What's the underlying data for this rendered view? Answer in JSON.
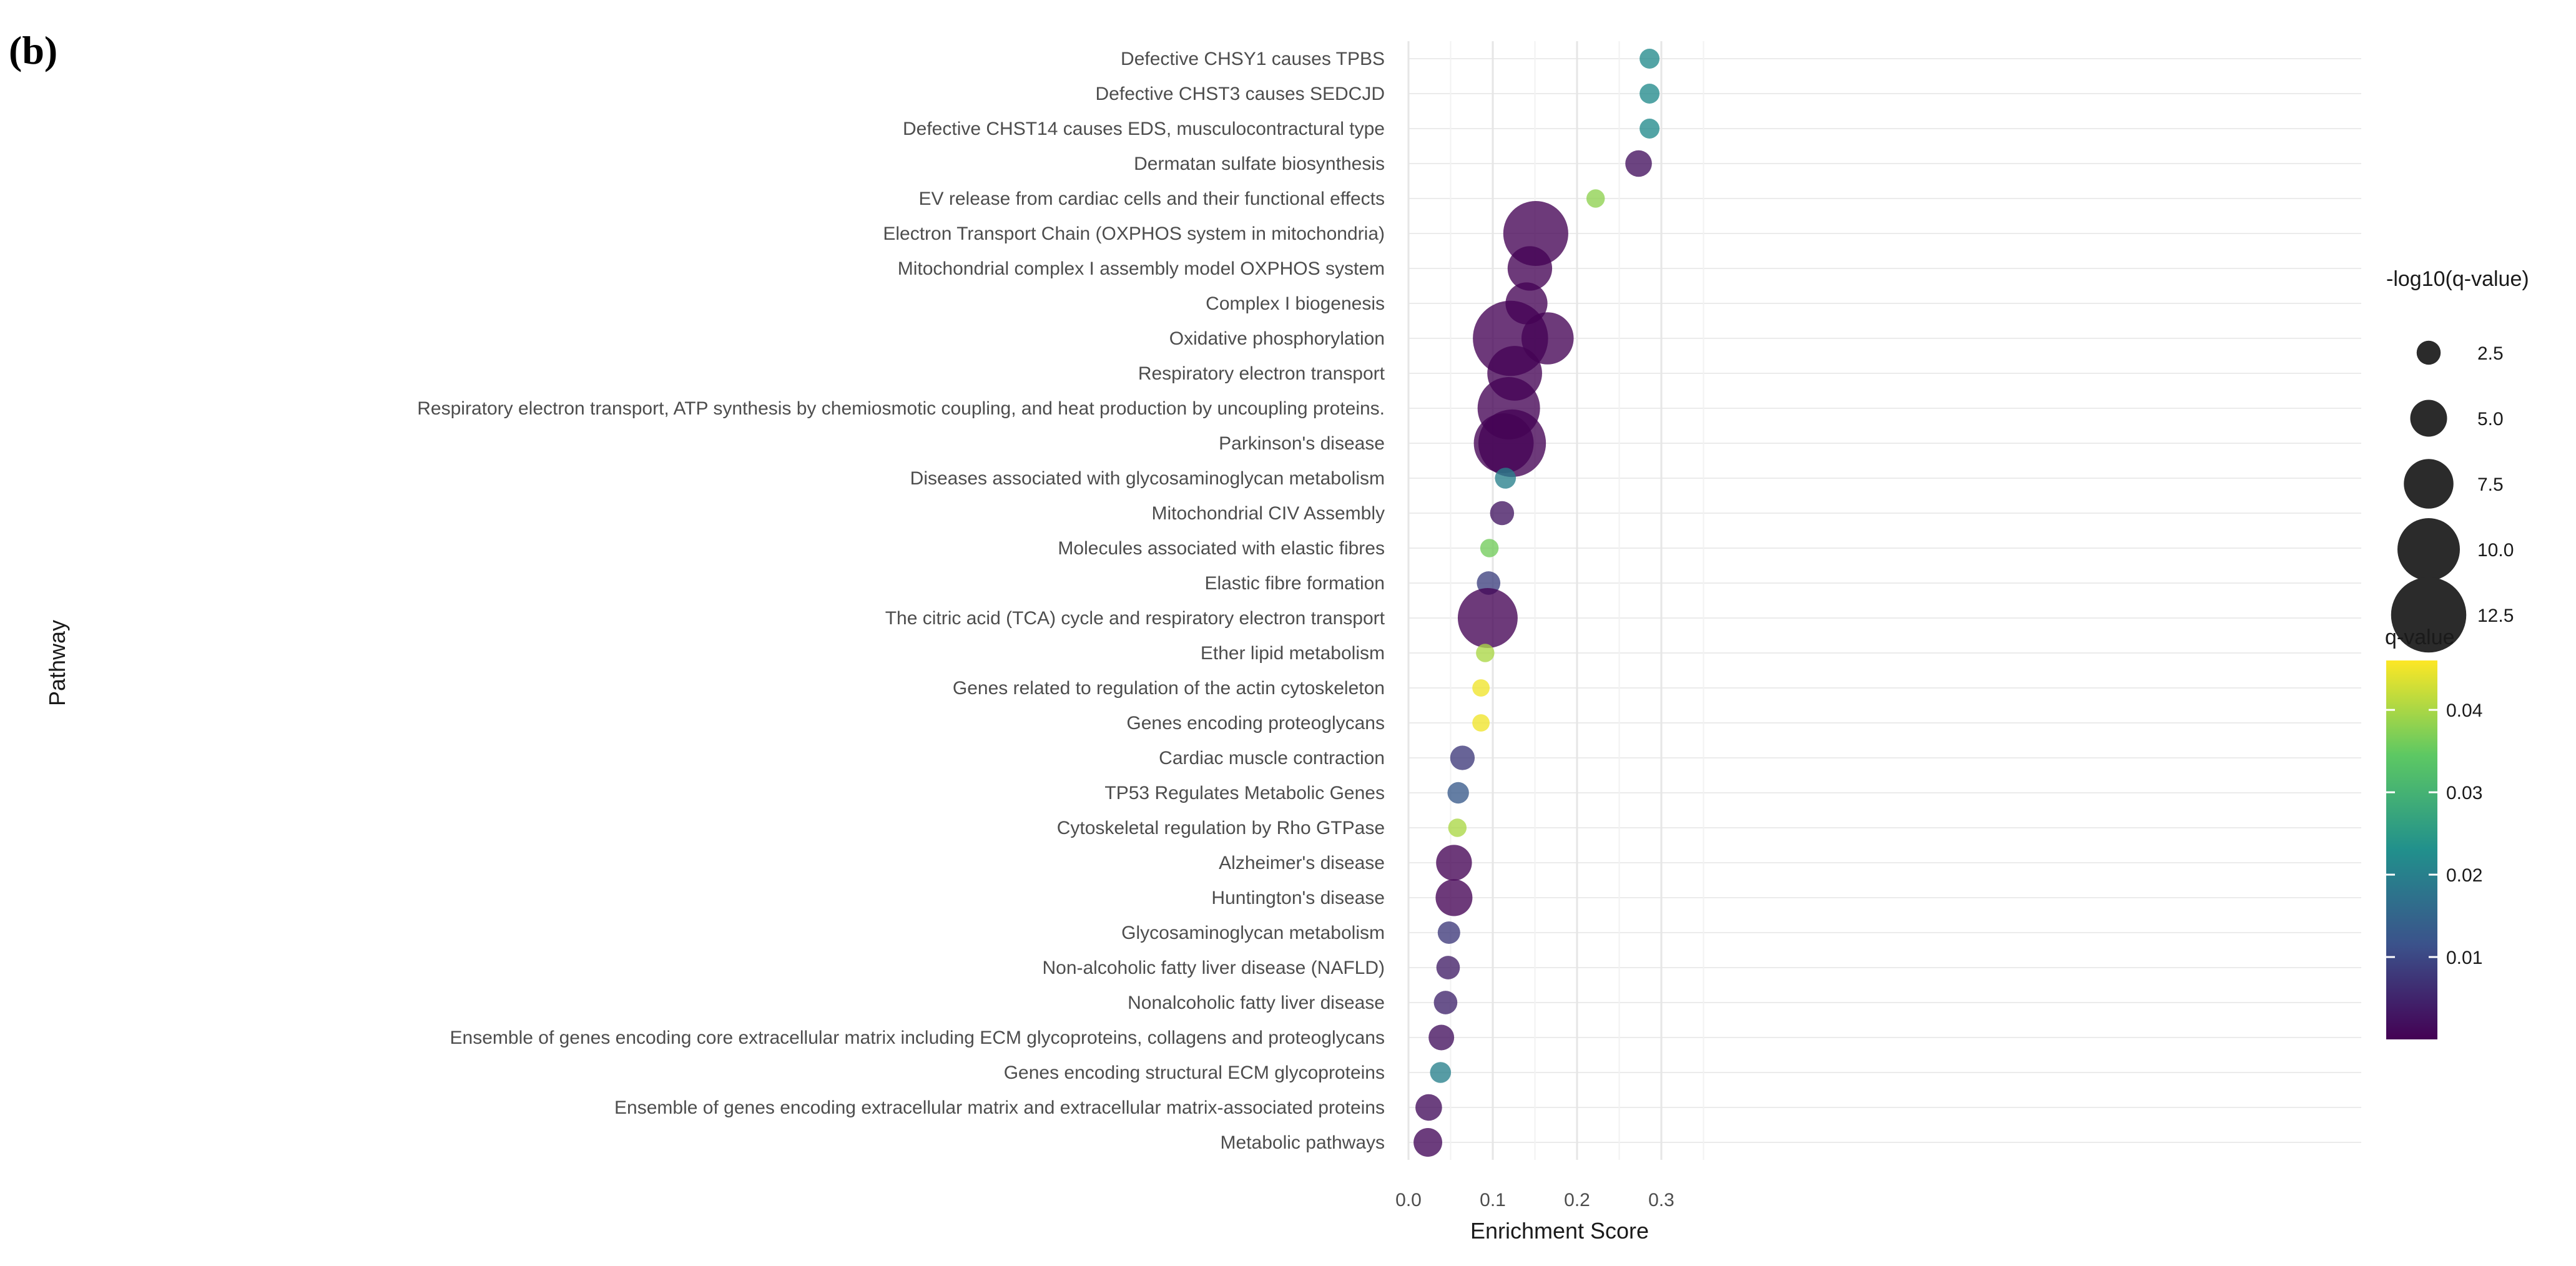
{
  "panel_label": "(b)",
  "chart_data": {
    "type": "scatter",
    "xlabel": "Enrichment Score",
    "ylabel": "Pathway",
    "xlim": [
      -0.0,
      0.34
    ],
    "xticks": [
      0.0,
      0.1,
      0.2,
      0.3
    ],
    "xtick_labels": [
      "0.0",
      "0.1",
      "0.2",
      "0.3"
    ],
    "grid": true,
    "pathways": [
      "Defective CHSY1 causes TPBS",
      "Defective CHST3 causes SEDCJD",
      "Defective CHST14 causes EDS, musculocontractural type",
      "Dermatan sulfate biosynthesis",
      "EV release from cardiac cells and their functional effects",
      "Electron Transport Chain (OXPHOS system in mitochondria)",
      "Mitochondrial complex I assembly model OXPHOS system",
      "Complex I biogenesis",
      "Oxidative phosphorylation",
      "Respiratory electron transport",
      "Respiratory electron transport, ATP synthesis by chemiosmotic coupling, and heat production by uncoupling proteins.",
      "Parkinson's disease",
      "Diseases associated with glycosaminoglycan metabolism",
      "Mitochondrial CIV Assembly",
      "Molecules associated with elastic fibres",
      "Elastic fibre formation",
      "The citric acid (TCA) cycle and respiratory electron transport",
      "Ether lipid metabolism",
      "Genes related to regulation of the actin cytoskeleton",
      "Genes encoding proteoglycans",
      "Cardiac muscle contraction",
      "TP53 Regulates Metabolic Genes",
      "Cytoskeletal regulation by Rho GTPase",
      "Alzheimer's disease",
      "Huntington's disease",
      "Glycosaminoglycan metabolism",
      "Non-alcoholic fatty liver disease (NAFLD)",
      "Nonalcoholic fatty liver disease",
      "Ensemble of genes encoding core extracellular matrix including ECM glycoproteins, collagens and proteoglycans",
      "Genes encoding structural ECM glycoproteins",
      "Ensemble of genes encoding extracellular matrix and extracellular matrix-associated proteins",
      "Metabolic pathways"
    ],
    "points": [
      {
        "pathway": "Defective CHSY1 causes TPBS",
        "x": 0.286,
        "neglog10q": 1.7,
        "q": 0.022
      },
      {
        "pathway": "Defective CHST3 causes SEDCJD",
        "x": 0.286,
        "neglog10q": 1.7,
        "q": 0.022
      },
      {
        "pathway": "Defective CHST14 causes EDS, musculocontractural type",
        "x": 0.286,
        "neglog10q": 1.7,
        "q": 0.022
      },
      {
        "pathway": "Dermatan sulfate biosynthesis",
        "x": 0.273,
        "neglog10q": 3.0,
        "q": 0.002
      },
      {
        "pathway": "EV release from cardiac cells and their functional effects",
        "x": 0.222,
        "neglog10q": 1.4,
        "q": 0.038
      },
      {
        "pathway": "Electron Transport Chain (OXPHOS system in mitochondria)",
        "x": 0.151,
        "neglog10q": 10.5,
        "q": 0.0001
      },
      {
        "pathway": "Mitochondrial complex I assembly model OXPHOS system",
        "x": 0.144,
        "neglog10q": 6.5,
        "q": 0.0001
      },
      {
        "pathway": "Complex I biogenesis",
        "x": 0.14,
        "neglog10q": 6.0,
        "q": 0.0001
      },
      {
        "pathway": "Oxidative phosphorylation",
        "x": 0.121,
        "neglog10q": 12.5,
        "q": 0.0
      },
      {
        "pathway": "Oxidative phosphorylation",
        "x": 0.165,
        "neglog10q": 8.0,
        "q": 0.0002
      },
      {
        "pathway": "Respiratory electron transport",
        "x": 0.126,
        "neglog10q": 8.5,
        "q": 0.0002
      },
      {
        "pathway": "Respiratory electron transport, ATP synthesis by chemiosmotic coupling, and heat production by uncoupling proteins.",
        "x": 0.119,
        "neglog10q": 10.0,
        "q": 0.0001
      },
      {
        "pathway": "Parkinson's disease",
        "x": 0.113,
        "neglog10q": 9.5,
        "q": 0.0001
      },
      {
        "pathway": "Parkinson's disease",
        "x": 0.123,
        "neglog10q": 11.0,
        "q": 0.0001
      },
      {
        "pathway": "Diseases associated with glycosaminoglycan metabolism",
        "x": 0.115,
        "neglog10q": 1.9,
        "q": 0.02
      },
      {
        "pathway": "Mitochondrial CIV Assembly",
        "x": 0.111,
        "neglog10q": 2.5,
        "q": 0.003
      },
      {
        "pathway": "Molecules associated with elastic fibres",
        "x": 0.096,
        "neglog10q": 1.4,
        "q": 0.036
      },
      {
        "pathway": "Elastic fibre formation",
        "x": 0.095,
        "neglog10q": 2.4,
        "q": 0.009
      },
      {
        "pathway": "The citric acid (TCA) cycle and respiratory electron transport",
        "x": 0.094,
        "neglog10q": 9.5,
        "q": 0.0002
      },
      {
        "pathway": "Ether lipid metabolism",
        "x": 0.091,
        "neglog10q": 1.4,
        "q": 0.04
      },
      {
        "pathway": "Genes related to regulation of the actin cytoskeleton",
        "x": 0.086,
        "neglog10q": 1.2,
        "q": 0.045
      },
      {
        "pathway": "Genes encoding proteoglycans",
        "x": 0.086,
        "neglog10q": 1.2,
        "q": 0.045
      },
      {
        "pathway": "Cardiac muscle contraction",
        "x": 0.064,
        "neglog10q": 2.6,
        "q": 0.008
      },
      {
        "pathway": "TP53 Regulates Metabolic Genes",
        "x": 0.059,
        "neglog10q": 2.0,
        "q": 0.013
      },
      {
        "pathway": "Cytoskeletal regulation by Rho GTPase",
        "x": 0.058,
        "neglog10q": 1.4,
        "q": 0.04
      },
      {
        "pathway": "Alzheimer's disease",
        "x": 0.054,
        "neglog10q": 4.8,
        "q": 0.0001
      },
      {
        "pathway": "Huntington's disease",
        "x": 0.054,
        "neglog10q": 5.0,
        "q": 0.0001
      },
      {
        "pathway": "Glycosaminoglycan metabolism",
        "x": 0.048,
        "neglog10q": 2.2,
        "q": 0.008
      },
      {
        "pathway": "Non-alcoholic fatty liver disease (NAFLD)",
        "x": 0.047,
        "neglog10q": 2.4,
        "q": 0.004
      },
      {
        "pathway": "Nonalcoholic fatty liver disease",
        "x": 0.044,
        "neglog10q": 2.4,
        "q": 0.005
      },
      {
        "pathway": "Ensemble of genes encoding core extracellular matrix including ECM glycoproteins, collagens and proteoglycans",
        "x": 0.039,
        "neglog10q": 2.8,
        "q": 0.002
      },
      {
        "pathway": "Genes encoding structural ECM glycoproteins",
        "x": 0.038,
        "neglog10q": 1.9,
        "q": 0.02
      },
      {
        "pathway": "Ensemble of genes encoding extracellular matrix and extracellular matrix-associated proteins",
        "x": 0.024,
        "neglog10q": 3.0,
        "q": 0.0015
      },
      {
        "pathway": "Metabolic pathways",
        "x": 0.023,
        "neglog10q": 3.4,
        "q": 0.0008
      }
    ],
    "size_legend": {
      "title": "-log10(q-value)",
      "values": [
        2.5,
        5.0,
        7.5,
        10.0,
        12.5
      ],
      "labels": [
        "2.5",
        "5.0",
        "7.5",
        "10.0",
        "12.5"
      ]
    },
    "color_legend": {
      "title": "q-value",
      "min": 0.0,
      "max": 0.046,
      "ticks": [
        0.01,
        0.02,
        0.03,
        0.04
      ],
      "tick_labels": [
        "0.01",
        "0.02",
        "0.03",
        "0.04"
      ],
      "palette": [
        "#440154",
        "#3b528b",
        "#21908c",
        "#5dc863",
        "#fde725"
      ]
    }
  }
}
